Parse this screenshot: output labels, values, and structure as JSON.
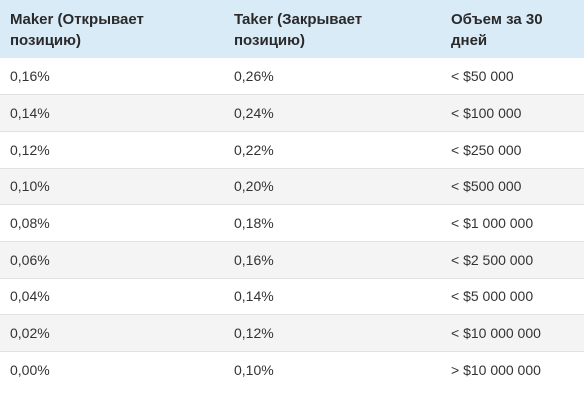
{
  "table": {
    "headers": [
      "Maker (Открывает позицию)",
      "Taker (Закрывает позицию)",
      "Объем за 30 дней"
    ],
    "rows": [
      [
        "0,16%",
        "0,26%",
        "< $50 000"
      ],
      [
        "0,14%",
        "0,24%",
        "< $100 000"
      ],
      [
        "0,12%",
        "0,22%",
        "< $250 000"
      ],
      [
        "0,10%",
        "0,20%",
        "< $500 000"
      ],
      [
        "0,08%",
        "0,18%",
        "< $1 000 000"
      ],
      [
        "0,06%",
        "0,16%",
        "< $2 500 000"
      ],
      [
        "0,04%",
        "0,14%",
        "< $5 000 000"
      ],
      [
        "0,02%",
        "0,12%",
        "< $10 000 000"
      ],
      [
        "0,00%",
        "0,10%",
        "> $10 000 000"
      ]
    ]
  },
  "colors": {
    "header_bg": "#d9ebf7",
    "stripe_bg": "#f4f4f4"
  }
}
